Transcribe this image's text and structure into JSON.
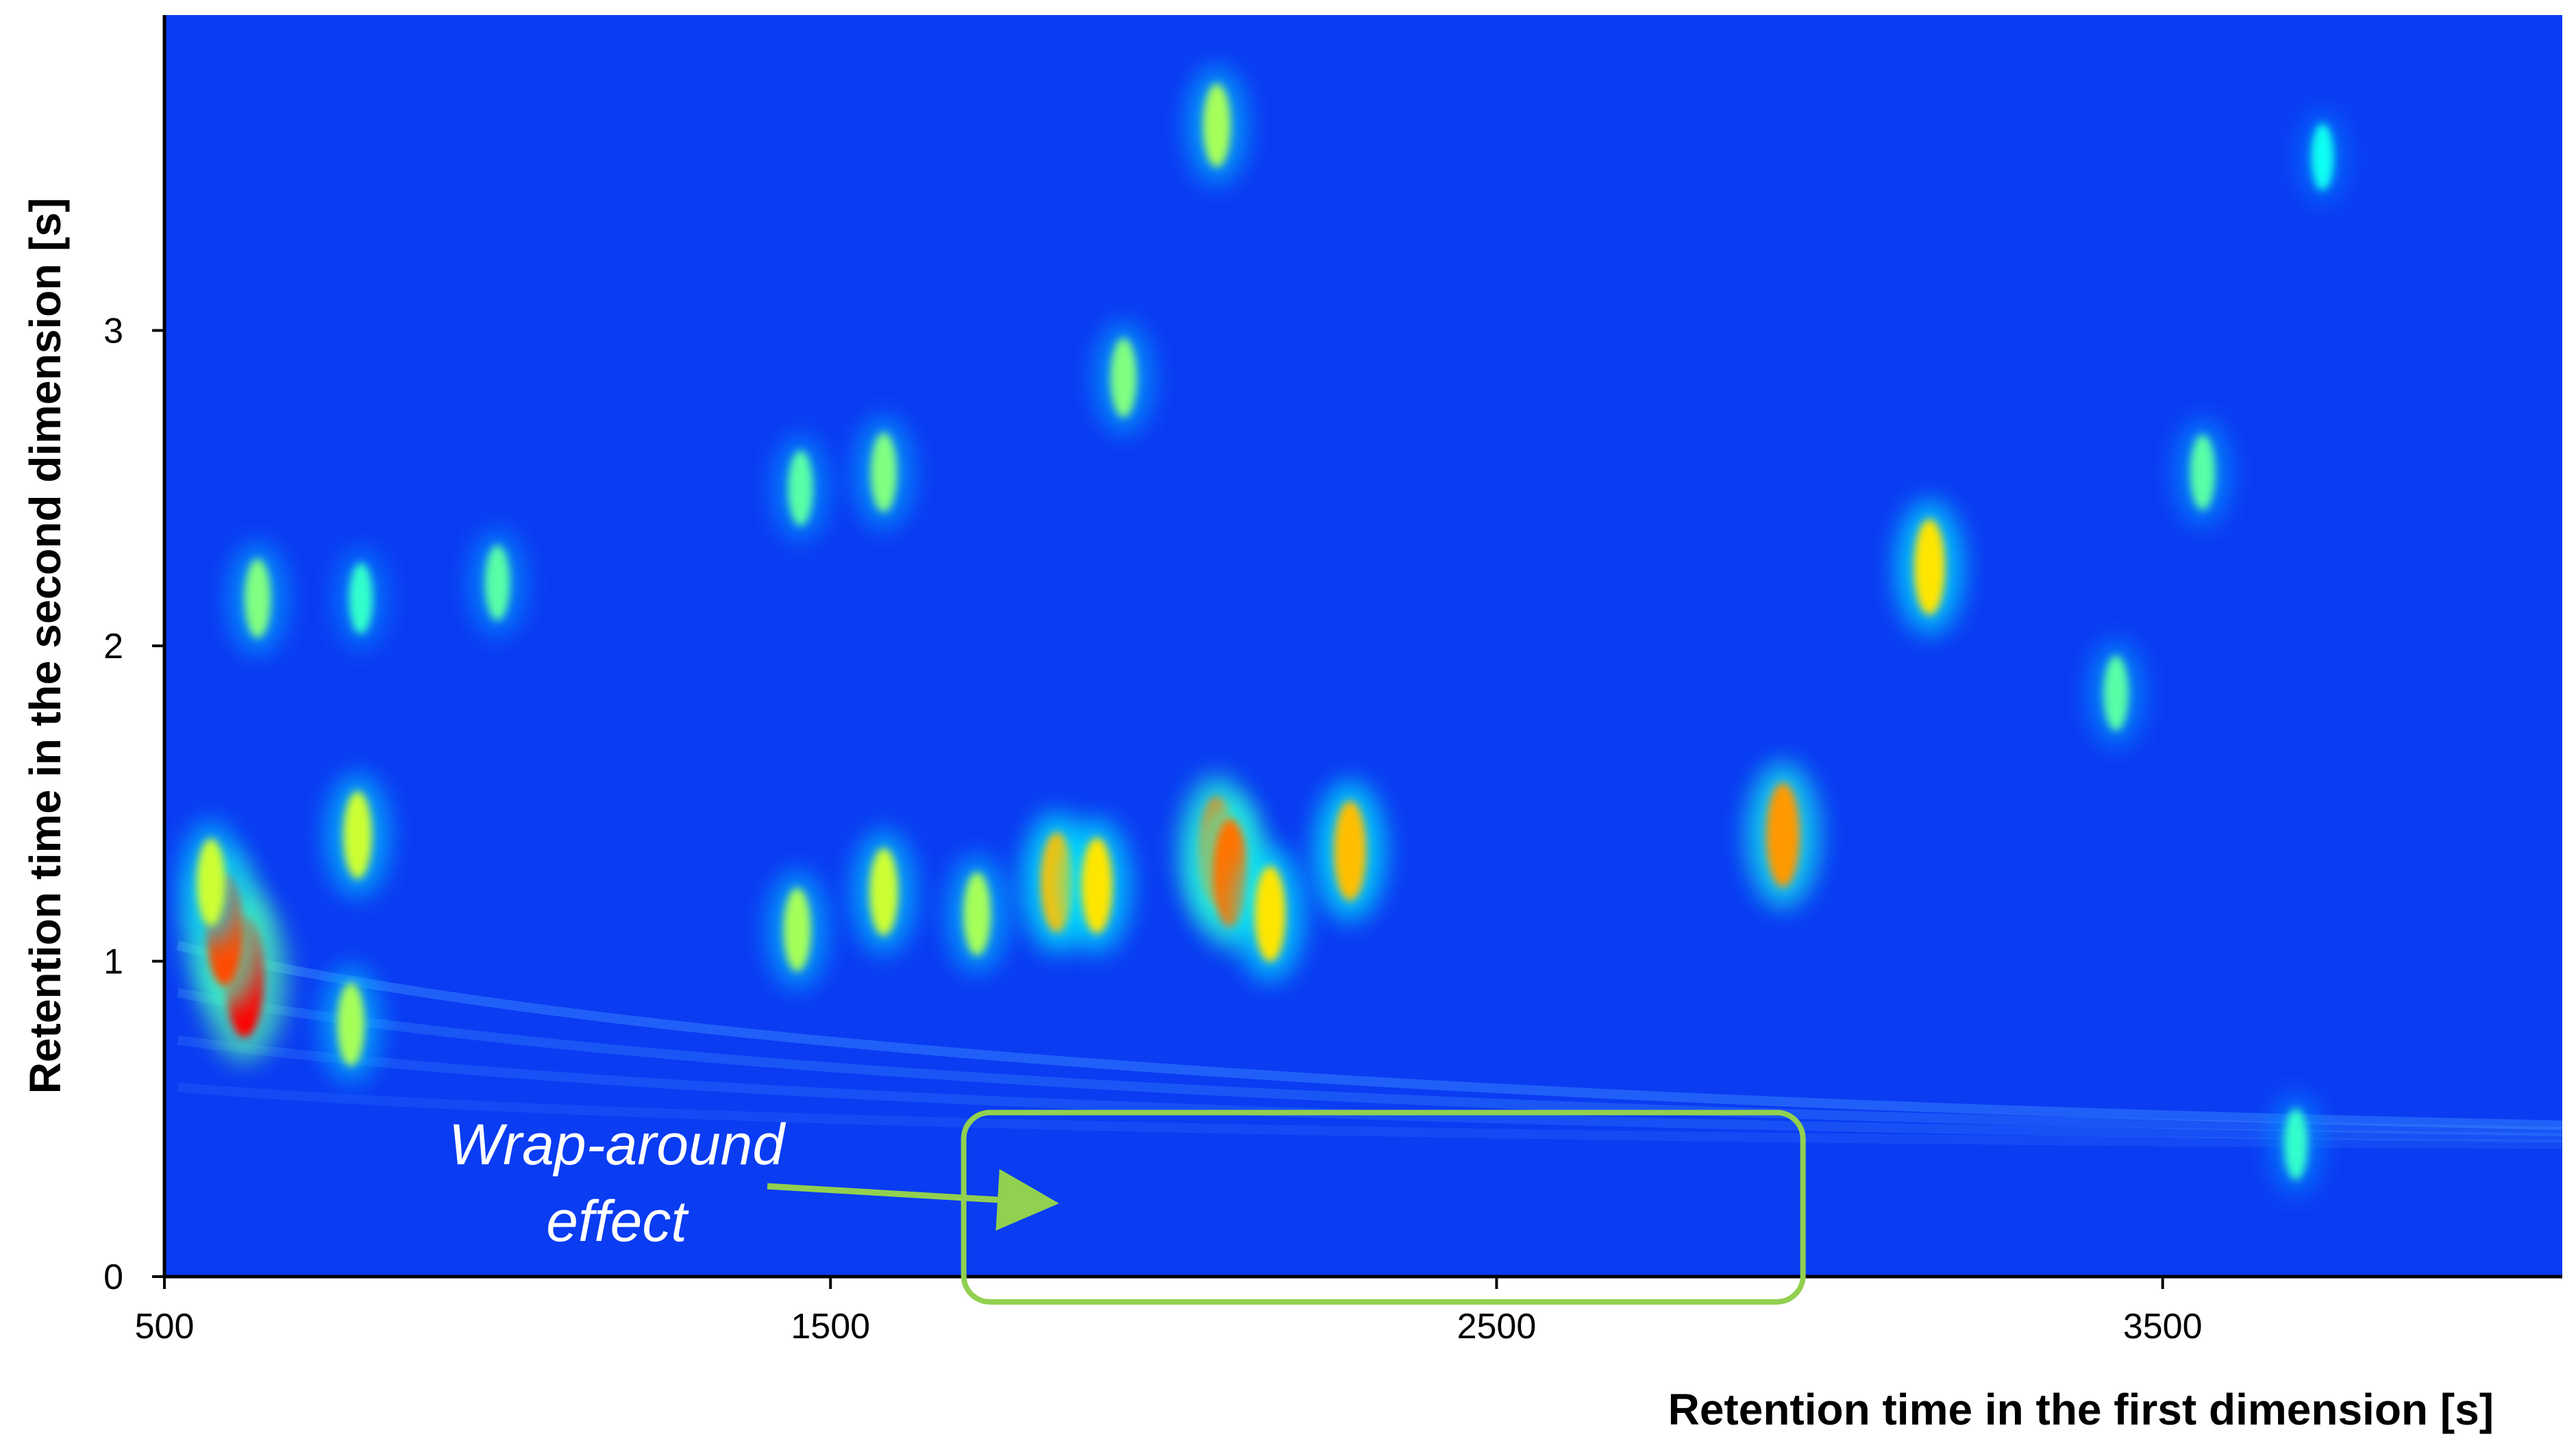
{
  "chart_data": {
    "type": "heatmap",
    "title": "",
    "xlabel": "Retention time in the first dimension [s]",
    "ylabel": "Retention time in the second dimension [s]",
    "xlim": [
      500,
      4100
    ],
    "ylim": [
      0,
      4.0
    ],
    "x_ticks": [
      500,
      1500,
      2500,
      3500
    ],
    "x_tick_labels": [
      "500",
      "1500",
      "2500",
      "3500"
    ],
    "y_ticks": [
      0,
      1,
      2,
      3
    ],
    "y_tick_labels": [
      "0",
      "1",
      "2",
      "3"
    ],
    "grid": false,
    "colormap": [
      "#0000ff",
      "#00ffff",
      "#ffff00",
      "#ff0000"
    ],
    "background_color": "#0a3cf2",
    "series": [
      {
        "values": [
          {
            "x": 620,
            "y": 0.95,
            "intensity": 1.0
          },
          {
            "x": 590,
            "y": 1.1,
            "intensity": 0.9
          },
          {
            "x": 570,
            "y": 1.25,
            "intensity": 0.6
          },
          {
            "x": 780,
            "y": 0.8,
            "intensity": 0.55
          },
          {
            "x": 790,
            "y": 1.4,
            "intensity": 0.6
          },
          {
            "x": 640,
            "y": 2.15,
            "intensity": 0.5
          },
          {
            "x": 795,
            "y": 2.15,
            "intensity": 0.4
          },
          {
            "x": 1000,
            "y": 2.2,
            "intensity": 0.45
          },
          {
            "x": 1450,
            "y": 1.1,
            "intensity": 0.55
          },
          {
            "x": 1455,
            "y": 2.5,
            "intensity": 0.45
          },
          {
            "x": 1580,
            "y": 1.22,
            "intensity": 0.6
          },
          {
            "x": 1580,
            "y": 2.55,
            "intensity": 0.5
          },
          {
            "x": 1720,
            "y": 1.15,
            "intensity": 0.55
          },
          {
            "x": 1840,
            "y": 1.25,
            "intensity": 0.75
          },
          {
            "x": 1900,
            "y": 1.24,
            "intensity": 0.7
          },
          {
            "x": 1940,
            "y": 2.85,
            "intensity": 0.5
          },
          {
            "x": 2080,
            "y": 1.35,
            "intensity": 0.85
          },
          {
            "x": 2100,
            "y": 1.28,
            "intensity": 0.85
          },
          {
            "x": 2080,
            "y": 3.65,
            "intensity": 0.55
          },
          {
            "x": 2160,
            "y": 1.15,
            "intensity": 0.7
          },
          {
            "x": 2280,
            "y": 1.35,
            "intensity": 0.75
          },
          {
            "x": 2930,
            "y": 1.4,
            "intensity": 0.8
          },
          {
            "x": 3150,
            "y": 2.25,
            "intensity": 0.7
          },
          {
            "x": 3430,
            "y": 1.85,
            "intensity": 0.45
          },
          {
            "x": 3560,
            "y": 2.55,
            "intensity": 0.45
          },
          {
            "x": 3740,
            "y": 3.55,
            "intensity": 0.35
          },
          {
            "x": 3700,
            "y": 0.42,
            "intensity": 0.4
          }
        ]
      }
    ],
    "annotations": [
      {
        "text_line1": "Wrap-around",
        "text_line2": "effect",
        "box_x": [
          1700,
          2960
        ],
        "box_y": [
          -0.08,
          0.52
        ],
        "color": "#92d050"
      }
    ]
  }
}
